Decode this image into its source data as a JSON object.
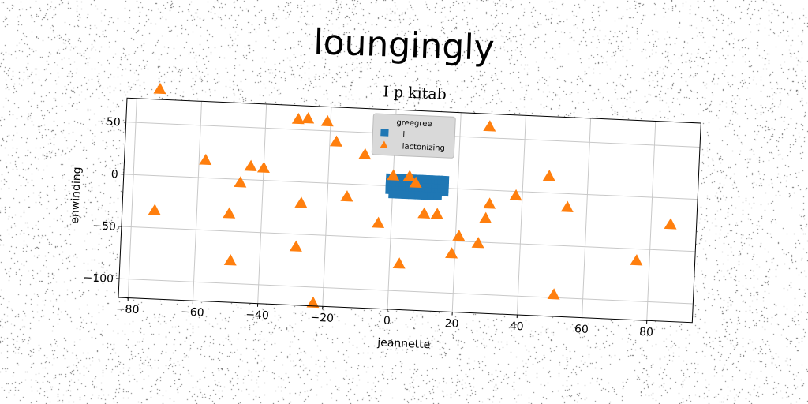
{
  "figure": {
    "suptitle": "loungingly"
  },
  "chart_data": {
    "type": "scatter",
    "title": "I p kitab",
    "xlabel": "jeannette",
    "ylabel": "enwinding",
    "xlim": [
      -83,
      94
    ],
    "ylim": [
      -118,
      73
    ],
    "xticks": [
      -80,
      -60,
      -40,
      -20,
      0,
      20,
      40,
      60,
      80
    ],
    "yticks": [
      50,
      0,
      -50,
      -100
    ],
    "grid": true,
    "legend": {
      "title": "greegree",
      "placement": "top-center",
      "entries": [
        "l",
        "lactonizing"
      ]
    },
    "series": [
      {
        "name": "l",
        "marker": "square",
        "color": "#1f77b4",
        "x": [
          -1,
          0,
          1,
          2,
          3,
          4,
          5,
          6,
          7,
          8,
          9,
          10,
          11,
          12,
          13,
          14,
          15,
          16,
          -1,
          0,
          1,
          2,
          3,
          4,
          5,
          6,
          7,
          8,
          9,
          10,
          11,
          12,
          13,
          14,
          15,
          16,
          -1,
          0,
          1,
          2,
          3,
          4,
          5,
          6,
          7,
          8,
          9,
          10,
          11,
          12,
          13,
          14,
          15,
          16,
          -1,
          0,
          1,
          2,
          3,
          4,
          5,
          6,
          7,
          8,
          9,
          10,
          11,
          12,
          13,
          14,
          15,
          16,
          0,
          2,
          4,
          6,
          8,
          10,
          12,
          14
        ],
        "y": [
          8,
          8,
          8,
          8,
          8,
          8,
          8,
          8,
          8,
          8,
          8,
          8,
          8,
          8,
          8,
          8,
          8,
          8,
          4,
          4,
          4,
          4,
          4,
          4,
          4,
          4,
          4,
          4,
          4,
          4,
          4,
          4,
          4,
          4,
          4,
          4,
          0,
          0,
          0,
          0,
          0,
          0,
          0,
          0,
          0,
          0,
          0,
          0,
          0,
          0,
          0,
          0,
          0,
          0,
          -4,
          -4,
          -4,
          -4,
          -4,
          -4,
          -4,
          -4,
          -4,
          -4,
          -4,
          -4,
          -4,
          -4,
          -4,
          -4,
          -4,
          -4,
          -8,
          -8,
          -8,
          -8,
          -8,
          -8,
          -8,
          -8
        ]
      },
      {
        "name": "lactonizing",
        "marker": "triangle",
        "color": "#ff7f0e",
        "x": [
          -73,
          -58,
          -47,
          -44,
          -40,
          -30,
          -27,
          -21,
          -18,
          -9,
          -73,
          -50,
          -49,
          -28,
          -14,
          -4,
          -29,
          -23,
          0,
          3,
          7,
          10,
          14,
          21,
          19,
          27,
          29,
          30,
          29,
          38,
          48,
          54,
          76,
          86,
          51,
          5
        ],
        "y": [
          83,
          17,
          -3,
          13,
          12,
          60,
          61,
          59,
          40,
          29,
          -33,
          -33,
          -78,
          -20,
          -12,
          -36,
          -62,
          -115,
          10,
          -74,
          4,
          -25,
          -25,
          -45,
          -62,
          -51,
          -27,
          -13,
          61,
          -4,
          16,
          -13,
          -61,
          -25,
          -97,
          10
        ]
      }
    ]
  }
}
